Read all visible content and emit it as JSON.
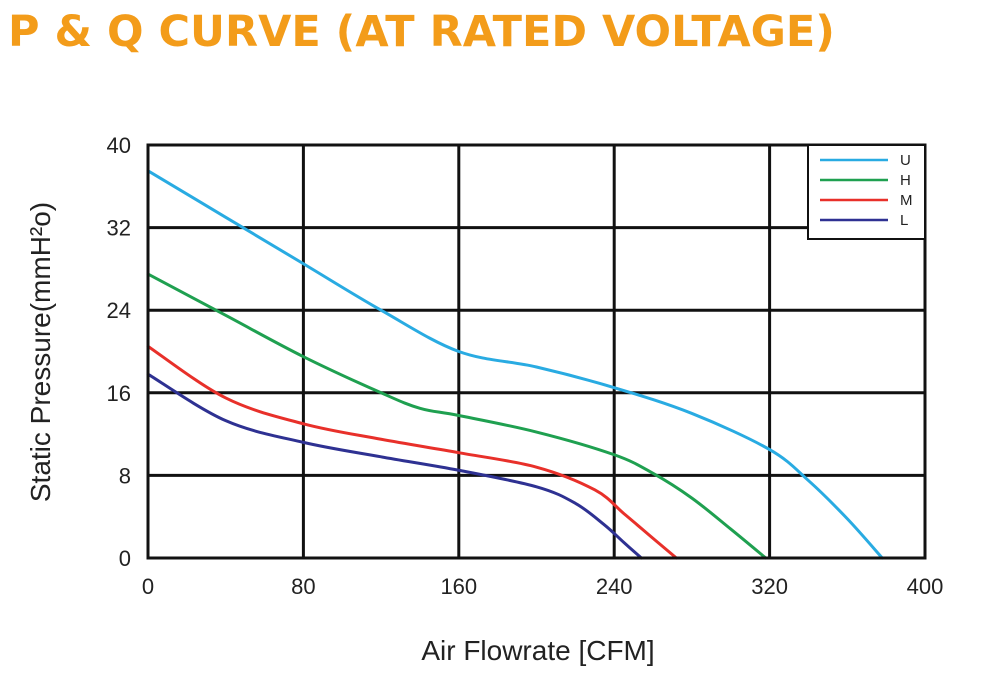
{
  "title": "P & Q CURVE (AT RATED VOLTAGE)",
  "colors": {
    "title": "#f39c1a",
    "U": "#29abe2",
    "H": "#1fa050",
    "M": "#e8302a",
    "L": "#2e3192"
  },
  "chart_data": {
    "type": "line",
    "title": "P & Q CURVE (AT RATED VOLTAGE)",
    "xlabel": "Air  Flowrate   [CFM]",
    "ylabel": "Static Pressure(mmH²o)",
    "xlim": [
      0,
      400
    ],
    "ylim": [
      0,
      40
    ],
    "xticks": [
      0,
      80,
      160,
      240,
      320,
      400
    ],
    "yticks": [
      0,
      8,
      16,
      24,
      32,
      40
    ],
    "grid": true,
    "legend_position": "top-right",
    "series": [
      {
        "name": "U",
        "color": "#29abe2",
        "x": [
          0,
          40,
          80,
          120,
          160,
          200,
          240,
          280,
          320,
          340,
          360,
          378
        ],
        "y": [
          37.5,
          33,
          28.5,
          24,
          20,
          18.5,
          16.5,
          14,
          10.5,
          7.5,
          3.8,
          0
        ]
      },
      {
        "name": "H",
        "color": "#1fa050",
        "x": [
          0,
          40,
          80,
          120,
          140,
          160,
          200,
          240,
          260,
          280,
          300,
          318
        ],
        "y": [
          27.5,
          23.5,
          19.5,
          16,
          14.5,
          13.8,
          12.2,
          10,
          8.2,
          5.8,
          2.8,
          0
        ]
      },
      {
        "name": "M",
        "color": "#e8302a",
        "x": [
          0,
          40,
          80,
          120,
          160,
          200,
          230,
          245,
          260,
          272
        ],
        "y": [
          20.5,
          15.5,
          13,
          11.5,
          10.2,
          8.8,
          6.6,
          4.3,
          1.9,
          0
        ]
      },
      {
        "name": "L",
        "color": "#2e3192",
        "x": [
          0,
          40,
          80,
          120,
          160,
          200,
          220,
          235,
          245,
          254
        ],
        "y": [
          17.8,
          13.3,
          11.2,
          9.8,
          8.5,
          6.9,
          5.3,
          3.2,
          1.5,
          0
        ]
      }
    ]
  }
}
